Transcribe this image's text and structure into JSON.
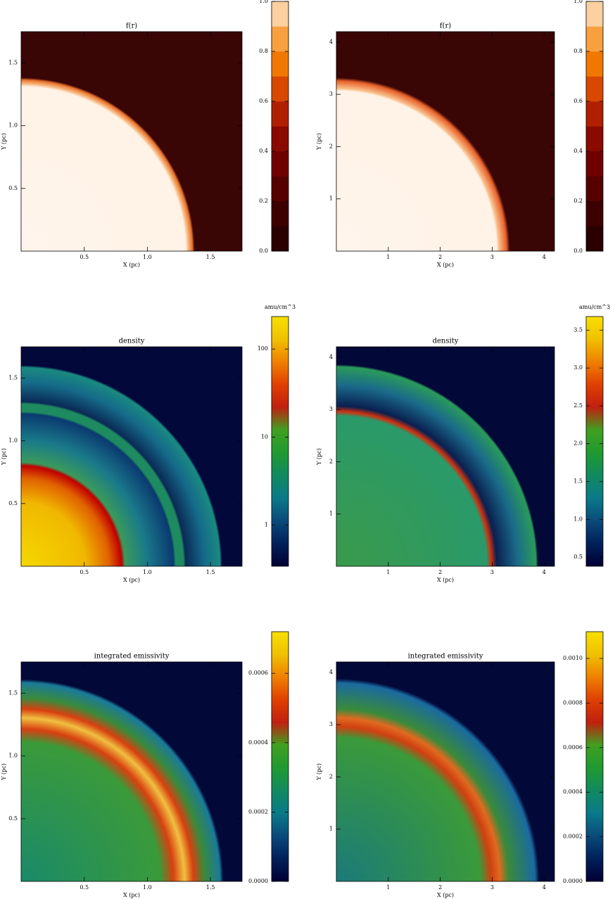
{
  "chart_data": [
    {
      "type": "heatmap",
      "title": "f(r)",
      "xlabel": "X (pc)",
      "ylabel": "Y (pc)",
      "xlim": [
        0,
        1.75
      ],
      "ylim": [
        0,
        1.75
      ],
      "xticks": [
        0.5,
        {
          "value": 1,
          "label": "1.0"
        },
        1.5
      ],
      "yticks": [
        0.5,
        {
          "value": 1,
          "label": "1.0"
        },
        1.5
      ],
      "colorbar": {
        "lim": [
          0,
          1
        ],
        "discrete": true,
        "ticks": [
          {
            "value": 0,
            "label": "0.0"
          },
          {
            "value": 0.2,
            "label": "0.2"
          },
          {
            "value": 0.4,
            "label": "0.4"
          },
          {
            "value": 0.6,
            "label": "0.6"
          },
          {
            "value": 0.8,
            "label": "0.8"
          },
          {
            "value": 1,
            "label": "1.0"
          }
        ],
        "colors": [
          "#2a0000",
          "#3d0000",
          "#560000",
          "#700000",
          "#8a0a00",
          "#b02000",
          "#d84800",
          "#f07800",
          "#f8a040",
          "#fcd0a0"
        ]
      }
    },
    {
      "type": "heatmap",
      "title": "f(r)",
      "xlabel": "X (pc)",
      "ylabel": "Y (pc)",
      "xlim": [
        0,
        4.2
      ],
      "ylim": [
        0,
        4.2
      ],
      "xticks": [
        1,
        2,
        3,
        4
      ],
      "yticks": [
        1,
        2,
        3,
        4
      ],
      "colorbar": {
        "lim": [
          0,
          1
        ],
        "discrete": true,
        "ticks": [
          {
            "value": 0,
            "label": "0.0"
          },
          {
            "value": 0.2,
            "label": "0.2"
          },
          {
            "value": 0.4,
            "label": "0.4"
          },
          {
            "value": 0.6,
            "label": "0.6"
          },
          {
            "value": 0.8,
            "label": "0.8"
          },
          {
            "value": 1,
            "label": "1.0"
          }
        ],
        "colors": [
          "#2a0000",
          "#3d0000",
          "#560000",
          "#700000",
          "#8a0a00",
          "#b02000",
          "#d84800",
          "#f07800",
          "#f8a040",
          "#fcd0a0"
        ]
      }
    },
    {
      "type": "heatmap",
      "title": "density",
      "xlabel": "X (pc)",
      "ylabel": "Y (pc)",
      "xlim": [
        0,
        1.75
      ],
      "ylim": [
        0,
        1.75
      ],
      "xticks": [
        0.5,
        {
          "value": 1,
          "label": "1.0"
        },
        1.5
      ],
      "yticks": [
        0.5,
        {
          "value": 1,
          "label": "1.0"
        },
        1.5
      ],
      "colorbar": {
        "label": "amu/cm^3",
        "lim": [
          0.34,
          234
        ],
        "log_scale": true,
        "discrete": false,
        "ticks": [
          1,
          10,
          100
        ],
        "colors": [
          "#000033",
          "#00205a",
          "#0a4a7a",
          "#0a7a8a",
          "#108a60",
          "#209a30",
          "#40a020",
          "#c02010",
          "#e04000",
          "#f08000",
          "#f0c000",
          "#f8e000"
        ]
      }
    },
    {
      "type": "heatmap",
      "title": "density",
      "xlabel": "X (pc)",
      "ylabel": "Y (pc)",
      "xlim": [
        0,
        4.2
      ],
      "ylim": [
        0,
        4.2
      ],
      "xticks": [
        1,
        2,
        3,
        4
      ],
      "yticks": [
        1,
        2,
        3,
        4
      ],
      "colorbar": {
        "label": "amu/cm^3",
        "lim": [
          0.38,
          3.68
        ],
        "discrete": false,
        "ticks": [
          0.5,
          {
            "value": 1,
            "label": "1.0"
          },
          1.5,
          {
            "value": 2,
            "label": "2.0"
          },
          2.5,
          {
            "value": 3,
            "label": "3.0"
          },
          3.5
        ],
        "colors": [
          "#000033",
          "#00205a",
          "#0a4a7a",
          "#0a7a8a",
          "#108a60",
          "#209a30",
          "#40a020",
          "#c02010",
          "#e04000",
          "#f08000",
          "#f0c000",
          "#f8e000"
        ]
      }
    },
    {
      "type": "heatmap",
      "title": "integrated emissivity",
      "xlabel": "X (pc)",
      "ylabel": "Y (pc)",
      "xlim": [
        0,
        1.75
      ],
      "ylim": [
        0,
        1.75
      ],
      "xticks": [
        0.5,
        {
          "value": 1,
          "label": "1.0"
        },
        1.5
      ],
      "yticks": [
        0.5,
        {
          "value": 1,
          "label": "1.0"
        },
        1.5
      ],
      "colorbar": {
        "lim": [
          0,
          0.00072
        ],
        "discrete": false,
        "ticks": [
          {
            "value": 0,
            "label": "0.0000"
          },
          {
            "value": 0.0002,
            "label": "0.0002"
          },
          {
            "value": 0.0004,
            "label": "0.0004"
          },
          {
            "value": 0.0006,
            "label": "0.0006"
          }
        ],
        "colors": [
          "#000033",
          "#00205a",
          "#0a4a7a",
          "#0a7a8a",
          "#108a60",
          "#209a30",
          "#40a020",
          "#c02010",
          "#e04000",
          "#f08000",
          "#f0c000",
          "#f8e000"
        ]
      }
    },
    {
      "type": "heatmap",
      "title": "integrated emissivity",
      "xlabel": "X (pc)",
      "ylabel": "Y (pc)",
      "xlim": [
        0,
        4.2
      ],
      "ylim": [
        0,
        4.2
      ],
      "xticks": [
        1,
        2,
        3,
        4
      ],
      "yticks": [
        1,
        2,
        3,
        4
      ],
      "colorbar": {
        "lim": [
          0,
          0.00112
        ],
        "discrete": false,
        "ticks": [
          {
            "value": 0,
            "label": "0.0000"
          },
          {
            "value": 0.0002,
            "label": "0.0002"
          },
          {
            "value": 0.0004,
            "label": "0.0004"
          },
          {
            "value": 0.0006,
            "label": "0.0006"
          },
          {
            "value": 0.0008,
            "label": "0.0008"
          },
          {
            "value": 0.001,
            "label": "0.0010"
          }
        ],
        "colors": [
          "#000033",
          "#00205a",
          "#0a4a7a",
          "#0a7a8a",
          "#108a60",
          "#209a30",
          "#40a020",
          "#c02010",
          "#e04000",
          "#f08000",
          "#f0c000",
          "#f8e000"
        ]
      }
    }
  ]
}
